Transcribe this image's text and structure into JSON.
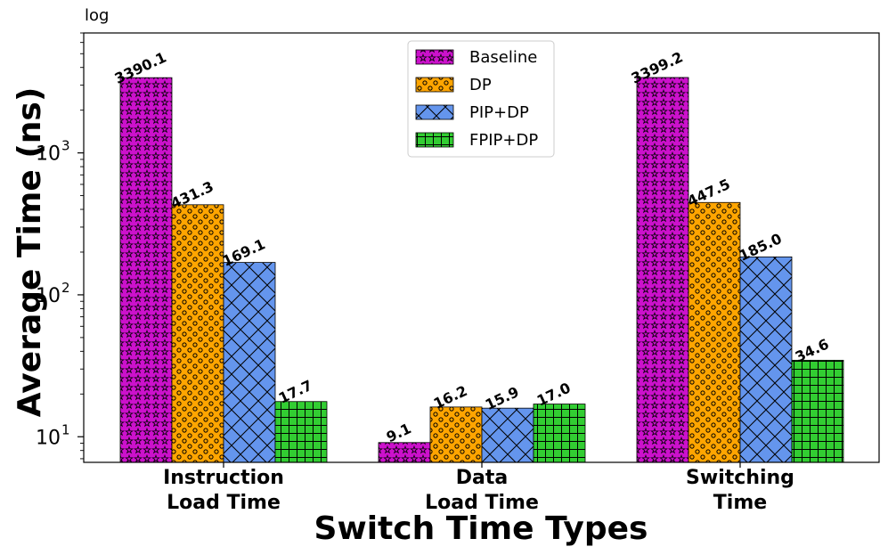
{
  "chart_data": {
    "type": "bar",
    "scale_note": "log",
    "xlabel": "Switch Time Types",
    "ylabel": "Average Time (ns)",
    "yscale": "log",
    "ylim": [
      6.6,
      7000
    ],
    "yticks": [
      {
        "base": "10",
        "exp": "1",
        "value": 10
      },
      {
        "base": "10",
        "exp": "2",
        "value": 100
      },
      {
        "base": "10",
        "exp": "3",
        "value": 1000
      }
    ],
    "categories": [
      [
        "Instruction",
        "Load Time"
      ],
      [
        "Data",
        "Load Time"
      ],
      [
        "Switching",
        "Time"
      ]
    ],
    "series": [
      {
        "name": "Baseline",
        "color": "#cc11cc",
        "pattern": "stars",
        "values": [
          3390.1,
          9.1,
          3399.2
        ],
        "labels": [
          "3390.1",
          "9.1",
          "3399.2"
        ]
      },
      {
        "name": "DP",
        "color": "#ffa500",
        "pattern": "circles",
        "values": [
          431.3,
          16.2,
          447.5
        ],
        "labels": [
          "431.3",
          "16.2",
          "447.5"
        ]
      },
      {
        "name": "PIP+DP",
        "color": "#6495ed",
        "pattern": "crosshatch",
        "values": [
          169.1,
          15.9,
          185.0
        ],
        "labels": [
          "169.1",
          "15.9",
          "185.0"
        ]
      },
      {
        "name": "FPIP+DP",
        "color": "#32cd32",
        "pattern": "grid",
        "values": [
          17.7,
          17.0,
          34.6
        ],
        "labels": [
          "17.7",
          "17.0",
          "34.6"
        ]
      }
    ],
    "legend": {
      "location": "upper-center"
    }
  }
}
